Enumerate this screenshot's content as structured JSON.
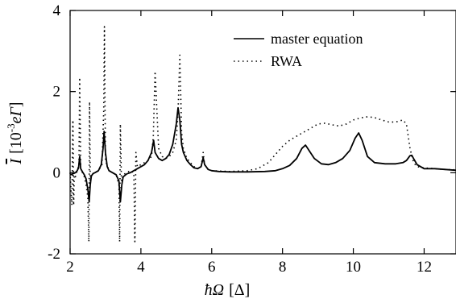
{
  "chart_data": {
    "type": "line",
    "xlabel_html": "ħΩ [Δ]",
    "xlabel": {
      "sym": "ħΩ",
      "unit": "[Δ]"
    },
    "ylabel": {
      "sym": "I",
      "open": "[10",
      "exp": "-3",
      "unit": "eΓ",
      "close": "]"
    },
    "xlim": [
      2,
      12.9
    ],
    "ylim": [
      -2,
      4
    ],
    "xticks": [
      2,
      4,
      6,
      8,
      10,
      12
    ],
    "yticks": [
      -2,
      0,
      2,
      4
    ],
    "xtick_labels": [
      "2",
      "4",
      "6",
      "8",
      "10",
      "12"
    ],
    "ytick_labels": [
      "-2",
      "0",
      "2",
      "4"
    ],
    "grid": false,
    "legend_position": "top-right",
    "series": [
      {
        "name": "master equation",
        "style": "solid",
        "color": "#000000",
        "x": [
          2.0,
          2.1,
          2.15,
          2.2,
          2.24,
          2.27,
          2.3,
          2.35,
          2.4,
          2.45,
          2.5,
          2.54,
          2.57,
          2.6,
          2.65,
          2.7,
          2.8,
          2.88,
          2.93,
          2.96,
          3.0,
          3.05,
          3.1,
          3.2,
          3.3,
          3.38,
          3.42,
          3.46,
          3.5,
          3.6,
          3.7,
          3.8,
          3.9,
          4.0,
          4.1,
          4.2,
          4.3,
          4.36,
          4.4,
          4.5,
          4.6,
          4.7,
          4.8,
          4.9,
          5.0,
          5.05,
          5.1,
          5.15,
          5.2,
          5.3,
          5.4,
          5.5,
          5.6,
          5.7,
          5.76,
          5.8,
          5.9,
          6.0,
          6.2,
          6.5,
          7.0,
          7.5,
          7.8,
          8.0,
          8.2,
          8.4,
          8.55,
          8.65,
          8.75,
          8.9,
          9.1,
          9.3,
          9.5,
          9.7,
          9.9,
          10.05,
          10.15,
          10.25,
          10.4,
          10.6,
          10.9,
          11.2,
          11.4,
          11.5,
          11.6,
          11.65,
          11.7,
          11.8,
          12.0,
          12.3,
          12.6,
          12.9
        ],
        "y": [
          -0.05,
          -0.02,
          0.0,
          0.05,
          0.12,
          0.4,
          0.1,
          0.02,
          -0.05,
          -0.15,
          -0.4,
          -0.72,
          -0.3,
          -0.08,
          -0.02,
          0.0,
          0.05,
          0.2,
          0.6,
          1.02,
          0.5,
          0.15,
          0.05,
          0.0,
          -0.05,
          -0.2,
          -0.72,
          -0.3,
          -0.1,
          -0.03,
          0.0,
          0.05,
          0.1,
          0.15,
          0.2,
          0.3,
          0.5,
          0.8,
          0.5,
          0.35,
          0.3,
          0.35,
          0.45,
          0.7,
          1.2,
          1.6,
          1.3,
          0.7,
          0.5,
          0.3,
          0.2,
          0.12,
          0.1,
          0.15,
          0.37,
          0.2,
          0.08,
          0.05,
          0.03,
          0.02,
          0.02,
          0.03,
          0.05,
          0.1,
          0.18,
          0.35,
          0.6,
          0.68,
          0.55,
          0.35,
          0.22,
          0.2,
          0.25,
          0.35,
          0.55,
          0.85,
          0.98,
          0.8,
          0.4,
          0.25,
          0.22,
          0.22,
          0.25,
          0.3,
          0.42,
          0.43,
          0.35,
          0.2,
          0.1,
          0.1,
          0.08,
          0.06
        ]
      },
      {
        "name": "RWA",
        "style": "dotted",
        "color": "#000000",
        "x": [
          2.0,
          2.05,
          2.08,
          2.1,
          2.12,
          2.15,
          2.2,
          2.25,
          2.27,
          2.3,
          2.35,
          2.4,
          2.45,
          2.5,
          2.53,
          2.55,
          2.57,
          2.6,
          2.7,
          2.8,
          2.9,
          2.95,
          2.97,
          3.0,
          3.1,
          3.2,
          3.3,
          3.38,
          3.4,
          3.42,
          3.45,
          3.5,
          3.6,
          3.7,
          3.8,
          3.83,
          3.86,
          3.9,
          4.0,
          4.1,
          4.2,
          4.3,
          4.35,
          4.4,
          4.5,
          4.6,
          4.7,
          4.8,
          4.9,
          5.0,
          5.05,
          5.1,
          5.15,
          5.2,
          5.3,
          5.4,
          5.5,
          5.6,
          5.7,
          5.76,
          5.8,
          5.9,
          6.0,
          6.5,
          7.0,
          7.3,
          7.6,
          7.8,
          8.0,
          8.2,
          8.4,
          8.6,
          8.8,
          9.0,
          9.2,
          9.4,
          9.6,
          9.8,
          10.0,
          10.2,
          10.4,
          10.6,
          10.8,
          11.0,
          11.2,
          11.4,
          11.5,
          11.6,
          11.7,
          11.8,
          12.0,
          12.3,
          12.6,
          12.9
        ],
        "y": [
          0.0,
          -0.8,
          1.3,
          -0.8,
          0.0,
          -0.1,
          0.05,
          0.2,
          2.35,
          0.1,
          0.0,
          -0.1,
          -0.3,
          -0.6,
          -1.7,
          1.75,
          -0.2,
          -0.05,
          0.0,
          0.05,
          0.2,
          1.5,
          3.6,
          0.3,
          0.05,
          0.0,
          -0.05,
          -0.3,
          -1.7,
          1.2,
          -0.2,
          -0.05,
          0.0,
          0.05,
          0.0,
          -1.7,
          0.5,
          0.15,
          0.2,
          0.25,
          0.3,
          0.4,
          0.9,
          2.5,
          0.6,
          0.4,
          0.35,
          0.4,
          0.5,
          0.8,
          1.5,
          2.9,
          1.0,
          0.6,
          0.35,
          0.25,
          0.15,
          0.1,
          0.15,
          0.5,
          0.2,
          0.08,
          0.05,
          0.03,
          0.05,
          0.1,
          0.25,
          0.45,
          0.65,
          0.8,
          0.9,
          1.0,
          1.1,
          1.2,
          1.22,
          1.18,
          1.15,
          1.2,
          1.3,
          1.35,
          1.38,
          1.36,
          1.3,
          1.25,
          1.25,
          1.3,
          1.2,
          0.6,
          0.25,
          0.15,
          0.12,
          0.1,
          0.08,
          0.07
        ]
      }
    ]
  }
}
